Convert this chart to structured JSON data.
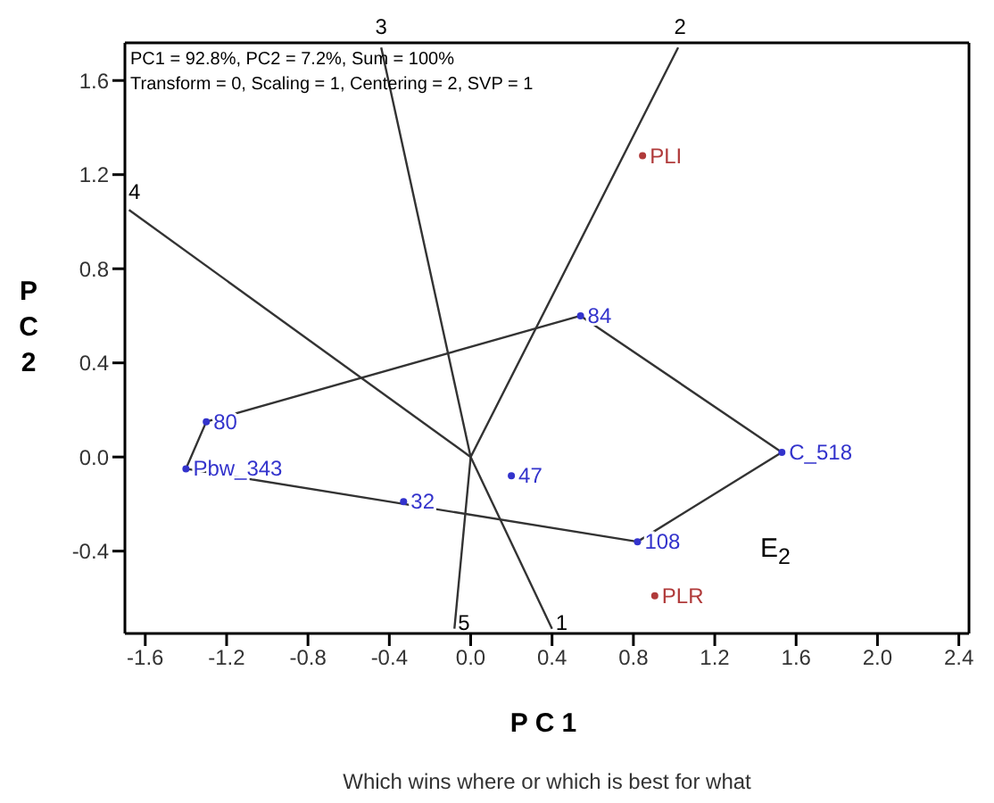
{
  "chart_data": {
    "type": "line",
    "title": "Which wins where or which is best for what",
    "xlabel": "PC1",
    "ylabel": "PC2",
    "annotations": [
      "PC1 = 92.8%, PC2 = 7.2%, Sum = 100%",
      "Transform = 0, Scaling = 1, Centering = 2, SVP = 1",
      "E$_{2}$",
      {
        "text": "1",
        "x": 0.4,
        "y": -0.75
      },
      {
        "text": "2",
        "x": 1.03,
        "y": 1.76
      },
      {
        "text": "3",
        "x": -0.44,
        "y": 1.76
      },
      {
        "text": "4",
        "x": -1.7,
        "y": 1.06
      },
      {
        "text": "5",
        "x": -0.08,
        "y": -0.75
      }
    ],
    "xlim": [
      -1.7,
      2.45
    ],
    "ylim": [
      -0.75,
      1.76
    ],
    "xticks": [
      -1.6,
      -1.2,
      -0.8,
      -0.4,
      {
        "value": 0,
        "label": "0.0"
      },
      0.4,
      0.8,
      1.2,
      1.6,
      {
        "value": 2,
        "label": "2.0"
      },
      2.4
    ],
    "yticks": [
      -0.4,
      {
        "value": 0,
        "label": "0.0"
      },
      0.4,
      0.8,
      1.2,
      1.6
    ],
    "marker": "none",
    "series": [
      {
        "color": "#333333",
        "x": [
          -1.4,
          -1.3,
          0.54,
          1.53
        ],
        "values": [
          -0.05,
          0.15,
          0.6,
          0.02
        ]
      },
      {
        "color": "#333333",
        "x": [
          -1.4,
          0.82,
          1.53
        ],
        "values": [
          -0.05,
          -0.36,
          0.02
        ]
      },
      {
        "color": "#333333",
        "x": [
          -0.44,
          0,
          0.4
        ],
        "values": [
          1.74,
          0,
          -0.73
        ]
      },
      {
        "color": "#333333",
        "x": [
          -0.08,
          0,
          1.02
        ],
        "values": [
          -0.73,
          0,
          1.74
        ]
      },
      {
        "color": "#333333",
        "x": [
          -1.68,
          0
        ],
        "values": [
          1.05,
          0
        ]
      },
      {
        "type": "scatter",
        "marker": "circle",
        "name": "84",
        "color": "#3333cc",
        "x": [
          0.54
        ],
        "values": [
          0.6
        ]
      },
      {
        "type": "scatter",
        "marker": "circle",
        "name": "80",
        "color": "#3333cc",
        "x": [
          -1.3
        ],
        "values": [
          0.15
        ]
      },
      {
        "type": "scatter",
        "marker": "circle",
        "name": "Pbw_343",
        "color": "#3333cc",
        "x": [
          -1.4
        ],
        "values": [
          -0.05
        ]
      },
      {
        "type": "scatter",
        "marker": "circle",
        "name": "32",
        "color": "#3333cc",
        "x": [
          -0.33
        ],
        "values": [
          -0.19
        ]
      },
      {
        "type": "scatter",
        "marker": "circle",
        "name": "47",
        "color": "#3333cc",
        "x": [
          0.2
        ],
        "values": [
          -0.08
        ]
      },
      {
        "type": "scatter",
        "marker": "circle",
        "name": "108",
        "color": "#3333cc",
        "x": [
          0.82
        ],
        "values": [
          -0.36
        ]
      },
      {
        "type": "scatter",
        "marker": "circle",
        "name": "C_518",
        "color": "#3333cc",
        "x": [
          1.53
        ],
        "values": [
          0.02
        ]
      },
      {
        "type": "scatter",
        "marker": "circle",
        "name": "PLI",
        "color": "#b03a3a",
        "x": [
          0.845
        ],
        "values": [
          1.28
        ]
      },
      {
        "type": "scatter",
        "marker": "circle",
        "name": "PLR",
        "color": "#b03a3a",
        "x": [
          0.905
        ],
        "values": [
          -0.59
        ]
      }
    ]
  }
}
